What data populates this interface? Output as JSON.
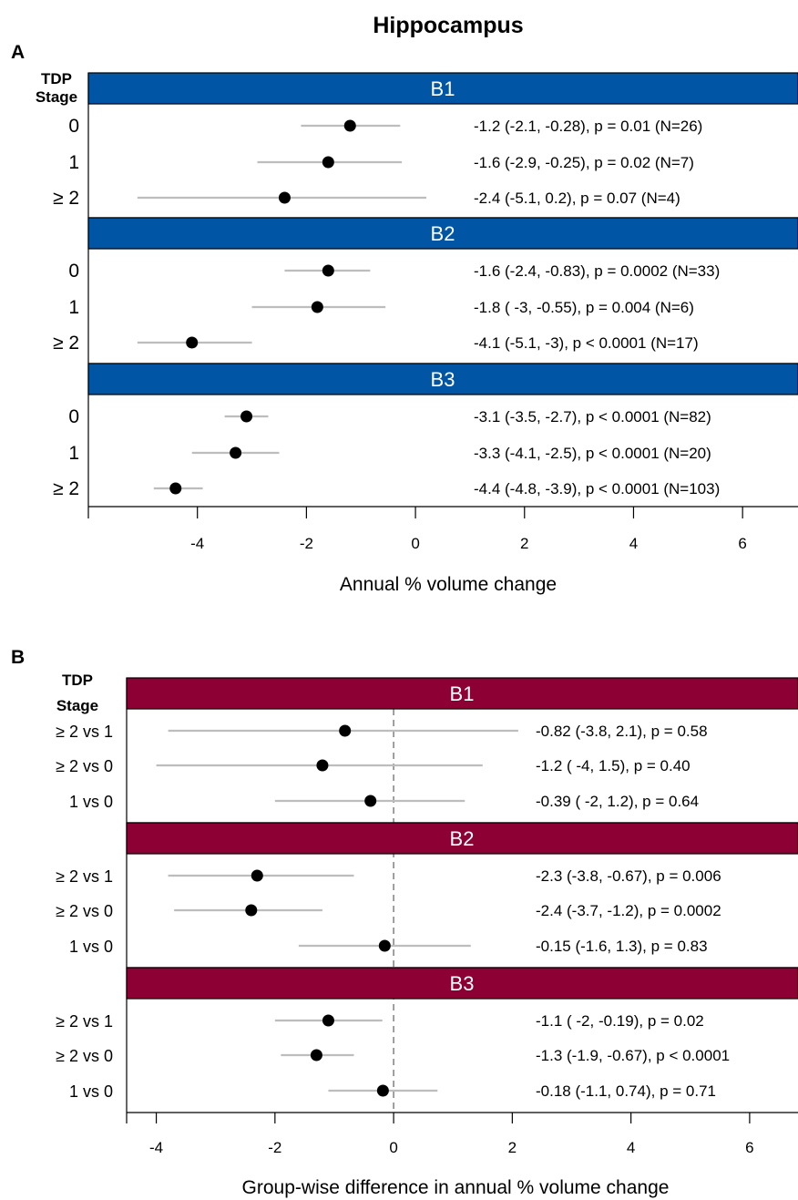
{
  "title": "Hippocampus",
  "chart_data": [
    {
      "type": "forest",
      "panel_label": "A",
      "group_header": "TDP\nStage",
      "strip_color": "#0055A4",
      "xlabel": "Annual % volume change",
      "xlim": [
        -6,
        7
      ],
      "xticks": [
        -4,
        -2,
        0,
        2,
        4,
        6
      ],
      "reference_line": null,
      "ci_color": "#bdbdbd",
      "point_color": "#000000",
      "strata": [
        {
          "name": "B1",
          "rows": [
            {
              "label": "0",
              "estimate": -1.2,
              "lower": -2.1,
              "upper": -0.28,
              "text": "-1.2 (-2.1, -0.28), p = 0.01 (N=26)"
            },
            {
              "label": "1",
              "estimate": -1.6,
              "lower": -2.9,
              "upper": -0.25,
              "text": "-1.6 (-2.9, -0.25), p = 0.02 (N=7)"
            },
            {
              "label": "≥ 2",
              "estimate": -2.4,
              "lower": -5.1,
              "upper": 0.2,
              "text": "-2.4 (-5.1, 0.2), p = 0.07 (N=4)"
            }
          ]
        },
        {
          "name": "B2",
          "rows": [
            {
              "label": "0",
              "estimate": -1.6,
              "lower": -2.4,
              "upper": -0.83,
              "text": "-1.6 (-2.4, -0.83), p = 0.0002 (N=33)"
            },
            {
              "label": "1",
              "estimate": -1.8,
              "lower": -3.0,
              "upper": -0.55,
              "text": "-1.8 ( -3, -0.55), p = 0.004 (N=6)"
            },
            {
              "label": "≥ 2",
              "estimate": -4.1,
              "lower": -5.1,
              "upper": -3.0,
              "text": "-4.1 (-5.1,  -3), p < 0.0001 (N=17)"
            }
          ]
        },
        {
          "name": "B3",
          "rows": [
            {
              "label": "0",
              "estimate": -3.1,
              "lower": -3.5,
              "upper": -2.7,
              "text": "-3.1 (-3.5, -2.7), p < 0.0001 (N=82)"
            },
            {
              "label": "1",
              "estimate": -3.3,
              "lower": -4.1,
              "upper": -2.5,
              "text": "-3.3 (-4.1, -2.5), p < 0.0001 (N=20)"
            },
            {
              "label": "≥ 2",
              "estimate": -4.4,
              "lower": -4.8,
              "upper": -3.9,
              "text": "-4.4 (-4.8, -3.9), p < 0.0001 (N=103)"
            }
          ]
        }
      ]
    },
    {
      "type": "forest",
      "panel_label": "B",
      "group_header": "TDP\nStage",
      "strip_color": "#8C0033",
      "xlabel": "Group-wise difference in annual % volume change",
      "xlim": [
        -4.5,
        6.8
      ],
      "xticks": [
        -4,
        -2,
        0,
        2,
        4,
        6
      ],
      "reference_line": 0,
      "ci_color": "#bdbdbd",
      "point_color": "#000000",
      "strata": [
        {
          "name": "B1",
          "rows": [
            {
              "label": "≥ 2 vs 1",
              "estimate": -0.82,
              "lower": -3.8,
              "upper": 2.1,
              "text": "-0.82 (-3.8, 2.1), p = 0.58"
            },
            {
              "label": "≥ 2 vs 0",
              "estimate": -1.2,
              "lower": -4.0,
              "upper": 1.5,
              "text": "-1.2 ( -4, 1.5), p = 0.40"
            },
            {
              "label": "1 vs 0",
              "estimate": -0.39,
              "lower": -2.0,
              "upper": 1.2,
              "text": "-0.39 ( -2, 1.2), p = 0.64"
            }
          ]
        },
        {
          "name": "B2",
          "rows": [
            {
              "label": "≥ 2 vs 1",
              "estimate": -2.3,
              "lower": -3.8,
              "upper": -0.67,
              "text": "-2.3 (-3.8, -0.67), p = 0.006"
            },
            {
              "label": "≥ 2 vs 0",
              "estimate": -2.4,
              "lower": -3.7,
              "upper": -1.2,
              "text": "-2.4 (-3.7, -1.2), p = 0.0002"
            },
            {
              "label": "1 vs 0",
              "estimate": -0.15,
              "lower": -1.6,
              "upper": 1.3,
              "text": "-0.15 (-1.6, 1.3), p = 0.83"
            }
          ]
        },
        {
          "name": "B3",
          "rows": [
            {
              "label": "≥ 2 vs 1",
              "estimate": -1.1,
              "lower": -2.0,
              "upper": -0.19,
              "text": "-1.1 ( -2, -0.19), p = 0.02"
            },
            {
              "label": "≥ 2 vs 0",
              "estimate": -1.3,
              "lower": -1.9,
              "upper": -0.67,
              "text": "-1.3 (-1.9, -0.67), p < 0.0001"
            },
            {
              "label": "1 vs 0",
              "estimate": -0.18,
              "lower": -1.1,
              "upper": 0.74,
              "text": "-0.18 (-1.1, 0.74), p = 0.71"
            }
          ]
        }
      ]
    }
  ]
}
